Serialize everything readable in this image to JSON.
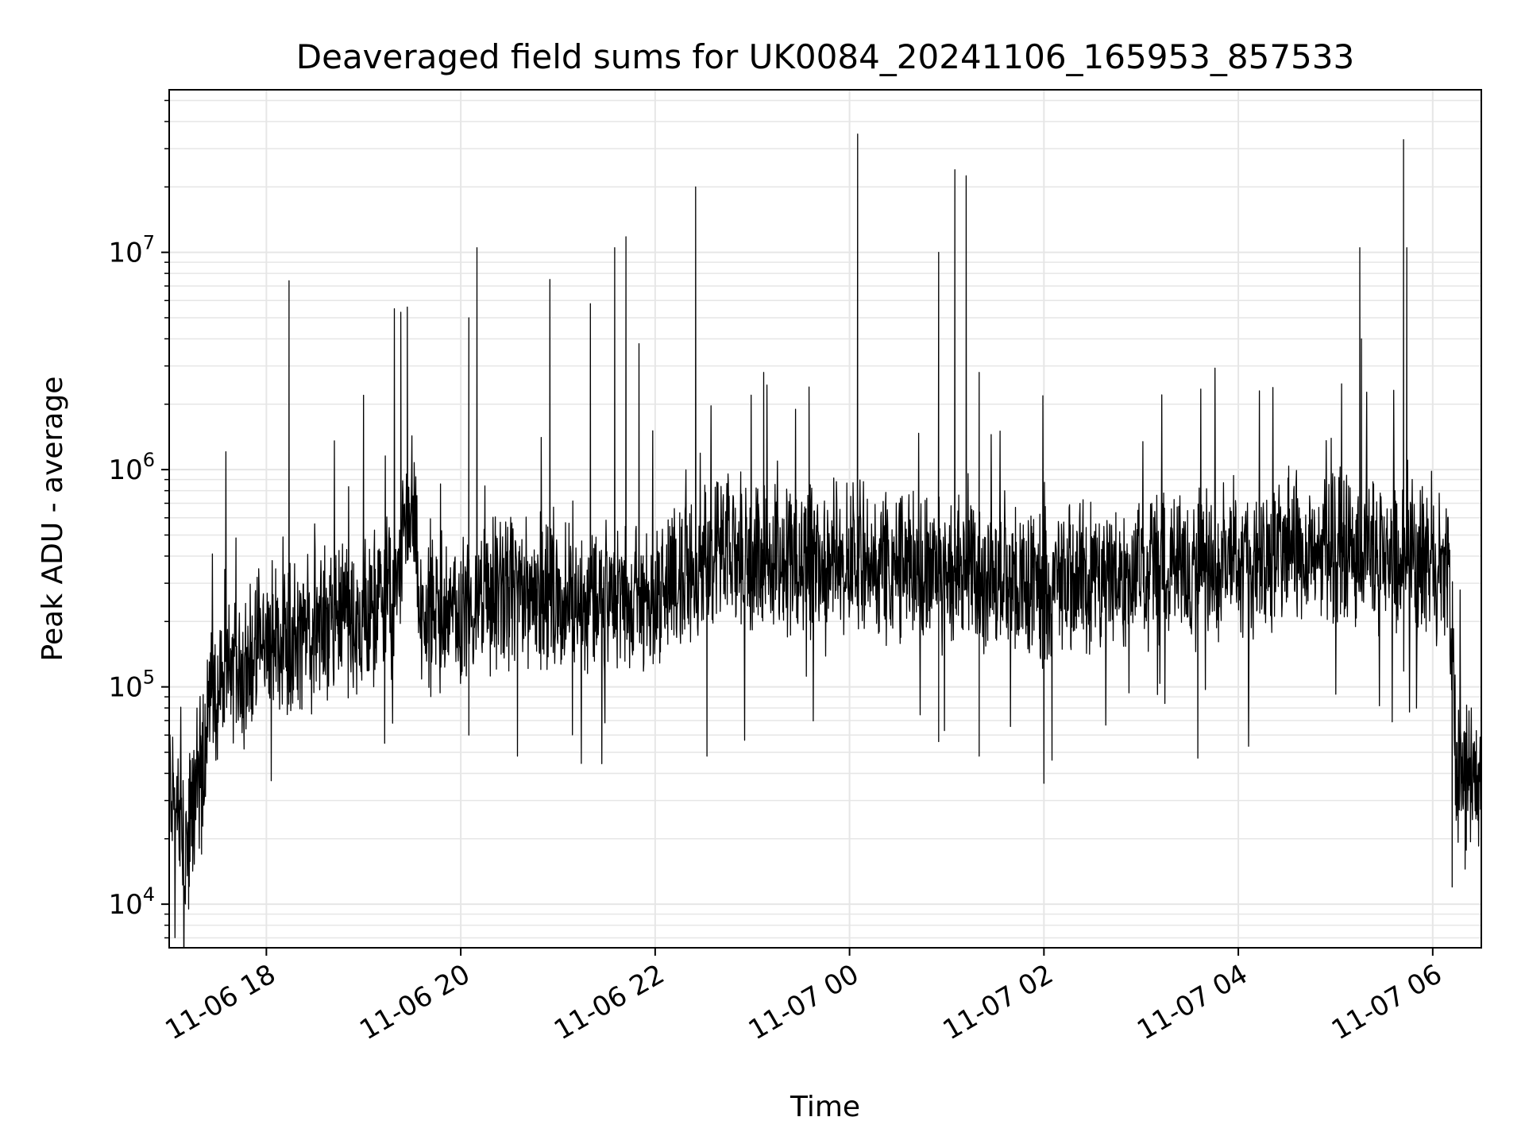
{
  "chart_data": {
    "type": "line",
    "title": "Deaveraged field sums for UK0084_20241106_165953_857533",
    "xlabel": "Time",
    "ylabel": "Peak ADU - average",
    "yscale": "log",
    "grid": true,
    "line_color": "#000000",
    "grid_color": "#e6e6e6",
    "xlim": [
      "2024-11-06 17:00",
      "2024-11-07 06:30"
    ],
    "ylim": [
      6300,
      56000000
    ],
    "xticks": [
      {
        "value": "2024-11-06 18:00",
        "label": "11-06 18"
      },
      {
        "value": "2024-11-06 20:00",
        "label": "11-06 20"
      },
      {
        "value": "2024-11-06 22:00",
        "label": "11-06 22"
      },
      {
        "value": "2024-11-07 00:00",
        "label": "11-07 00"
      },
      {
        "value": "2024-11-07 02:00",
        "label": "11-07 02"
      },
      {
        "value": "2024-11-07 04:00",
        "label": "11-07 04"
      },
      {
        "value": "2024-11-07 06:00",
        "label": "11-07 06"
      }
    ],
    "yticks": [
      {
        "value": 10000,
        "base": "10",
        "exp": "4"
      },
      {
        "value": 100000,
        "base": "10",
        "exp": "5"
      },
      {
        "value": 1000000,
        "base": "10",
        "exp": "6"
      },
      {
        "value": 10000000,
        "base": "10",
        "exp": "7"
      }
    ],
    "series": [
      {
        "baseline": [
          [
            "2024-11-06 17:00",
            40000
          ],
          [
            "2024-11-06 17:10",
            16000
          ],
          [
            "2024-11-06 17:20",
            50000
          ],
          [
            "2024-11-06 17:30",
            100000
          ],
          [
            "2024-11-06 18:00",
            160000
          ],
          [
            "2024-11-06 19:00",
            220000
          ],
          [
            "2024-11-06 19:20",
            280000
          ],
          [
            "2024-11-06 19:30",
            700000
          ],
          [
            "2024-11-06 19:35",
            200000
          ],
          [
            "2024-11-06 20:30",
            270000
          ],
          [
            "2024-11-06 22:00",
            250000
          ],
          [
            "2024-11-06 22:30",
            400000
          ],
          [
            "2024-11-07 00:00",
            380000
          ],
          [
            "2024-11-07 02:00",
            300000
          ],
          [
            "2024-11-07 04:00",
            380000
          ],
          [
            "2024-11-07 05:00",
            450000
          ],
          [
            "2024-11-07 06:10",
            350000
          ],
          [
            "2024-11-07 06:15",
            40000
          ],
          [
            "2024-11-07 06:30",
            40000
          ]
        ],
        "spikes": [
          [
            "2024-11-06 18:14",
            7400000
          ],
          [
            "2024-11-06 18:14",
            4300000
          ],
          [
            "2024-11-06 19:00",
            2200000
          ],
          [
            "2024-11-06 19:19",
            5500000
          ],
          [
            "2024-11-06 19:23",
            5300000
          ],
          [
            "2024-11-06 19:27",
            5600000
          ],
          [
            "2024-11-06 20:05",
            5000000
          ],
          [
            "2024-11-06 20:10",
            10500000
          ],
          [
            "2024-11-06 20:55",
            7500000
          ],
          [
            "2024-11-06 21:20",
            5800000
          ],
          [
            "2024-11-06 21:35",
            10500000
          ],
          [
            "2024-11-06 21:42",
            11800000
          ],
          [
            "2024-11-06 21:50",
            3800000
          ],
          [
            "2024-11-06 22:25",
            20000000
          ],
          [
            "2024-11-06 23:07",
            2800000
          ],
          [
            "2024-11-06 23:35",
            2400000
          ],
          [
            "2024-11-07 00:05",
            35000000
          ],
          [
            "2024-11-07 00:55",
            10000000
          ],
          [
            "2024-11-07 01:05",
            24000000
          ],
          [
            "2024-11-07 01:12",
            22500000
          ],
          [
            "2024-11-07 01:20",
            2800000
          ],
          [
            "2024-11-07 05:15",
            10500000
          ],
          [
            "2024-11-07 05:16",
            4000000
          ],
          [
            "2024-11-07 05:42",
            33000000
          ],
          [
            "2024-11-07 05:44",
            10500000
          ]
        ],
        "dips": [
          [
            "2024-11-06 17:12",
            9500
          ],
          [
            "2024-11-06 17:20",
            17000
          ],
          [
            "2024-11-06 18:03",
            37000
          ],
          [
            "2024-11-06 19:13",
            55000
          ],
          [
            "2024-11-06 20:05",
            60000
          ],
          [
            "2024-11-06 20:35",
            48000
          ],
          [
            "2024-11-06 22:32",
            48000
          ],
          [
            "2024-11-07 00:55",
            56000
          ],
          [
            "2024-11-07 01:20",
            48000
          ],
          [
            "2024-11-07 02:00",
            36000
          ],
          [
            "2024-11-07 02:05",
            46000
          ],
          [
            "2024-11-07 03:35",
            47000
          ],
          [
            "2024-11-07 06:12",
            12000
          ],
          [
            "2024-11-07 06:20",
            14500
          ]
        ]
      }
    ]
  }
}
